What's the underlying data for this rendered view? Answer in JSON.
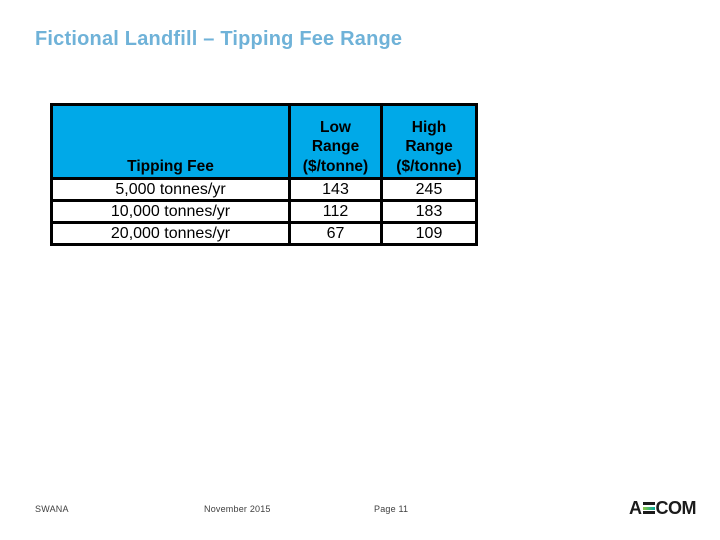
{
  "title": "Fictional Landfill – Tipping Fee Range",
  "table": {
    "header": {
      "col1": "Tipping Fee",
      "col2": "Low\nRange\n($/tonne)",
      "col3": "High\nRange\n($/tonne)"
    },
    "rows": [
      {
        "label": "5,000 tonnes/yr",
        "low": "143",
        "high": "245"
      },
      {
        "label": "10,000 tonnes/yr",
        "low": "112",
        "high": "183"
      },
      {
        "label": "20,000 tonnes/yr",
        "low": "67",
        "high": "109"
      }
    ]
  },
  "chart_data": {
    "type": "table",
    "title": "Fictional Landfill – Tipping Fee Range",
    "columns": [
      "Tipping Fee",
      "Low Range ($/tonne)",
      "High Range ($/tonne)"
    ],
    "rows": [
      [
        "5,000 tonnes/yr",
        143,
        245
      ],
      [
        "10,000 tonnes/yr",
        112,
        183
      ],
      [
        "20,000 tonnes/yr",
        67,
        109
      ]
    ]
  },
  "footer": {
    "left": "SWANA",
    "center": "November 2015",
    "page": "Page 11",
    "logo_a": "A",
    "logo_com": "COM",
    "logo_name": "AECOM"
  },
  "colors": {
    "title_text": "#6FB2D8",
    "table_header_bg": "#00A9E8",
    "border": "#000000",
    "footer_text": "#3F3F3F",
    "logo_text": "#1B1B1B",
    "logo_grad_start": "#8DC63F",
    "logo_grad_end": "#00A79D"
  }
}
